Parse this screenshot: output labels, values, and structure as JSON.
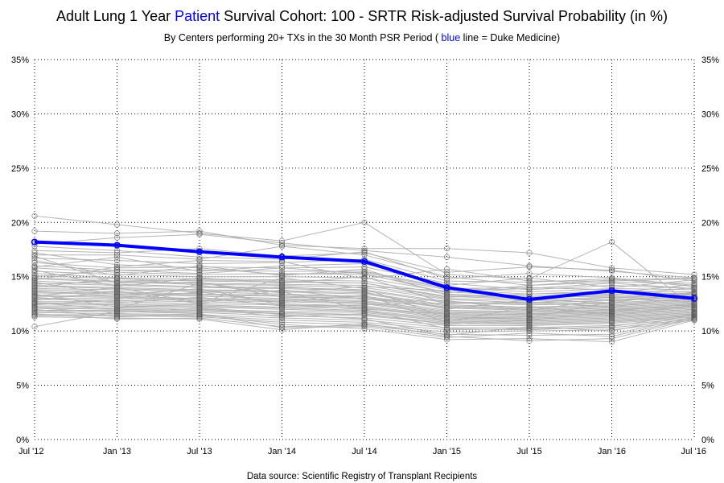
{
  "chart_data": {
    "type": "line",
    "title": {
      "prefix": "Adult Lung 1 Year ",
      "highlight": "Patient",
      "suffix": " Survival Cohort: 100 - SRTR Risk-adjusted Survival Probability (in %)"
    },
    "subtitle": {
      "prefix": "By Centers performing 20+ TXs in the 30 Month PSR Period  ( ",
      "highlight": "blue",
      "suffix": " line = Duke Medicine)"
    },
    "source": "Data source:  Scientific Registry of Transplant Recipients",
    "x": [
      "Jul '12",
      "Jan '13",
      "Jul '13",
      "Jan '14",
      "Jul '14",
      "Jan '15",
      "Jul '15",
      "Jan '16",
      "Jul '16"
    ],
    "ylim": [
      0,
      35
    ],
    "yticks": [
      "0%",
      "5%",
      "10%",
      "15%",
      "20%",
      "25%",
      "30%",
      "35%"
    ],
    "grid": true,
    "highlight_series": {
      "name": "Duke Medicine",
      "color": "#0000ff",
      "values": [
        18.2,
        17.9,
        17.3,
        16.8,
        16.4,
        14.0,
        12.9,
        13.7,
        13.0
      ]
    },
    "background_series": {
      "color": "#b4b4b4",
      "marker_color": "#555555",
      "count": 60,
      "values": [
        [
          20.6,
          19.8,
          19.0,
          18.3,
          20.0,
          15.2,
          14.8,
          18.2,
          12.1
        ],
        [
          19.2,
          19.0,
          19.2,
          17.9,
          17.6,
          17.6,
          17.2,
          15.8,
          15.2
        ],
        [
          18.0,
          18.6,
          18.9,
          18.1,
          17.4,
          16.8,
          16.0,
          15.5,
          14.9
        ],
        [
          17.4,
          17.2,
          17.6,
          16.9,
          17.2,
          15.4,
          15.9,
          15.6,
          14.6
        ],
        [
          17.0,
          17.0,
          16.6,
          17.8,
          17.0,
          15.0,
          14.2,
          14.5,
          14.4
        ],
        [
          16.7,
          16.5,
          16.2,
          16.3,
          16.6,
          14.6,
          14.5,
          14.8,
          14.1
        ],
        [
          16.3,
          15.8,
          15.9,
          15.8,
          15.9,
          14.4,
          13.8,
          14.2,
          13.9
        ],
        [
          16.0,
          15.6,
          15.6,
          15.5,
          15.5,
          14.0,
          13.6,
          13.9,
          13.8
        ],
        [
          15.8,
          15.4,
          15.2,
          15.3,
          15.2,
          13.8,
          13.4,
          13.7,
          13.6
        ],
        [
          15.5,
          15.2,
          15.0,
          15.0,
          14.9,
          13.6,
          13.2,
          13.4,
          13.5
        ],
        [
          15.3,
          14.9,
          14.8,
          14.7,
          14.6,
          13.4,
          13.1,
          13.2,
          13.4
        ],
        [
          15.1,
          14.8,
          14.6,
          14.5,
          14.4,
          13.2,
          12.9,
          13.1,
          13.3
        ],
        [
          14.9,
          14.6,
          14.4,
          14.3,
          14.2,
          13.0,
          12.8,
          12.9,
          13.2
        ],
        [
          14.8,
          14.5,
          14.3,
          14.2,
          14.0,
          12.9,
          12.6,
          12.8,
          13.1
        ],
        [
          14.6,
          14.3,
          14.1,
          14.0,
          13.8,
          12.7,
          12.5,
          12.6,
          13.0
        ],
        [
          14.4,
          14.2,
          14.0,
          13.9,
          13.7,
          12.6,
          12.4,
          12.5,
          12.9
        ],
        [
          14.2,
          14.0,
          13.8,
          13.7,
          13.5,
          12.4,
          12.2,
          12.4,
          12.8
        ],
        [
          14.1,
          13.9,
          13.7,
          13.6,
          13.4,
          12.3,
          12.1,
          12.3,
          12.7
        ],
        [
          13.9,
          13.8,
          13.6,
          13.4,
          13.2,
          12.2,
          12.0,
          12.2,
          12.6
        ],
        [
          13.8,
          13.6,
          13.4,
          13.3,
          13.1,
          12.1,
          11.9,
          12.1,
          12.5
        ],
        [
          13.6,
          13.5,
          13.3,
          13.2,
          13.0,
          11.9,
          11.8,
          12.0,
          12.4
        ],
        [
          13.5,
          13.4,
          13.2,
          13.0,
          12.8,
          11.8,
          11.7,
          11.9,
          12.3
        ],
        [
          13.3,
          13.2,
          13.0,
          12.9,
          12.7,
          11.7,
          11.6,
          11.8,
          12.2
        ],
        [
          13.2,
          13.1,
          12.9,
          12.8,
          12.6,
          11.6,
          11.5,
          11.7,
          12.1
        ],
        [
          13.0,
          13.0,
          12.8,
          12.7,
          12.5,
          11.5,
          11.4,
          11.6,
          12.0
        ],
        [
          12.9,
          12.8,
          12.7,
          12.5,
          12.3,
          11.4,
          11.3,
          11.5,
          11.9
        ],
        [
          12.7,
          12.7,
          12.5,
          12.4,
          12.2,
          11.3,
          11.2,
          11.4,
          11.8
        ],
        [
          12.6,
          12.5,
          12.4,
          12.2,
          12.1,
          11.2,
          11.1,
          11.3,
          11.7
        ],
        [
          12.5,
          12.4,
          12.3,
          12.1,
          11.9,
          11.1,
          11.0,
          11.2,
          11.7
        ],
        [
          12.3,
          12.3,
          12.2,
          12.0,
          11.8,
          11.0,
          10.9,
          11.1,
          11.6
        ],
        [
          12.2,
          12.1,
          12.0,
          11.8,
          11.7,
          10.9,
          10.8,
          11.0,
          11.5
        ],
        [
          12.1,
          12.0,
          11.9,
          11.7,
          11.5,
          10.8,
          10.7,
          10.9,
          11.4
        ],
        [
          11.9,
          11.9,
          11.8,
          11.6,
          11.4,
          10.7,
          10.6,
          10.8,
          11.4
        ],
        [
          11.8,
          11.8,
          11.7,
          11.4,
          11.2,
          10.5,
          10.5,
          10.7,
          11.3
        ],
        [
          11.7,
          11.6,
          11.5,
          11.2,
          11.0,
          10.3,
          10.3,
          10.5,
          11.2
        ],
        [
          11.5,
          11.5,
          11.4,
          11.0,
          10.8,
          10.1,
          10.2,
          10.3,
          11.1
        ],
        [
          11.4,
          11.4,
          11.3,
          10.8,
          10.6,
          9.9,
          10.0,
          10.1,
          11.0
        ],
        [
          10.4,
          11.8,
          11.6,
          10.3,
          10.4,
          9.4,
          9.8,
          9.5,
          11.2
        ],
        [
          15.0,
          15.6,
          15.3,
          15.8,
          15.3,
          13.5,
          14.2,
          14.7,
          14.9
        ],
        [
          14.3,
          14.6,
          14.7,
          14.6,
          14.4,
          13.1,
          13.4,
          13.5,
          14.3
        ],
        [
          13.7,
          13.2,
          13.5,
          14.1,
          13.6,
          12.0,
          12.9,
          12.6,
          13.6
        ],
        [
          12.8,
          13.7,
          12.5,
          13.8,
          12.9,
          12.8,
          11.9,
          13.0,
          12.7
        ],
        [
          12.4,
          12.9,
          13.6,
          12.6,
          13.3,
          10.8,
          12.3,
          11.4,
          12.4
        ],
        [
          15.6,
          14.1,
          14.9,
          14.4,
          15.0,
          12.5,
          12.7,
          12.2,
          13.2
        ],
        [
          16.5,
          15.1,
          16.0,
          15.1,
          15.7,
          13.3,
          13.0,
          13.3,
          14.0
        ],
        [
          14.5,
          13.3,
          13.9,
          12.4,
          12.0,
          11.6,
          11.5,
          12.0,
          12.2
        ],
        [
          13.4,
          12.2,
          12.2,
          11.5,
          11.1,
          9.6,
          10.4,
          10.0,
          11.5
        ],
        [
          12.0,
          11.3,
          11.5,
          10.6,
          10.2,
          9.2,
          9.3,
          9.0,
          11.0
        ],
        [
          17.8,
          17.4,
          16.8,
          16.6,
          17.3,
          14.8,
          15.3,
          14.9,
          14.2
        ],
        [
          15.9,
          16.8,
          15.5,
          16.0,
          16.2,
          14.2,
          14.9,
          14.0,
          14.7
        ],
        [
          14.0,
          14.9,
          14.2,
          13.5,
          14.1,
          13.7,
          13.9,
          14.4,
          13.9
        ],
        [
          13.1,
          12.6,
          13.1,
          12.3,
          12.4,
          12.6,
          12.6,
          13.1,
          13.0
        ],
        [
          12.1,
          11.7,
          12.1,
          11.3,
          11.6,
          10.6,
          11.0,
          11.8,
          12.5
        ],
        [
          11.6,
          11.1,
          11.2,
          10.4,
          10.5,
          9.7,
          9.6,
          9.7,
          11.3
        ],
        [
          17.2,
          16.1,
          15.8,
          15.2,
          15.4,
          13.9,
          14.0,
          13.8,
          13.3
        ],
        [
          16.9,
          14.4,
          14.5,
          13.1,
          13.0,
          12.2,
          12.0,
          11.6,
          12.0
        ],
        [
          14.7,
          15.9,
          16.5,
          16.4,
          14.8,
          15.7,
          14.6,
          14.6,
          14.8
        ],
        [
          13.2,
          14.0,
          12.6,
          14.9,
          13.9,
          11.2,
          11.2,
          12.7,
          13.5
        ],
        [
          12.6,
          12.0,
          14.4,
          13.6,
          12.0,
          10.2,
          10.1,
          10.4,
          11.6
        ],
        [
          11.3,
          11.2,
          11.1,
          10.1,
          10.7,
          9.5,
          9.1,
          9.3,
          11.1
        ]
      ]
    }
  }
}
